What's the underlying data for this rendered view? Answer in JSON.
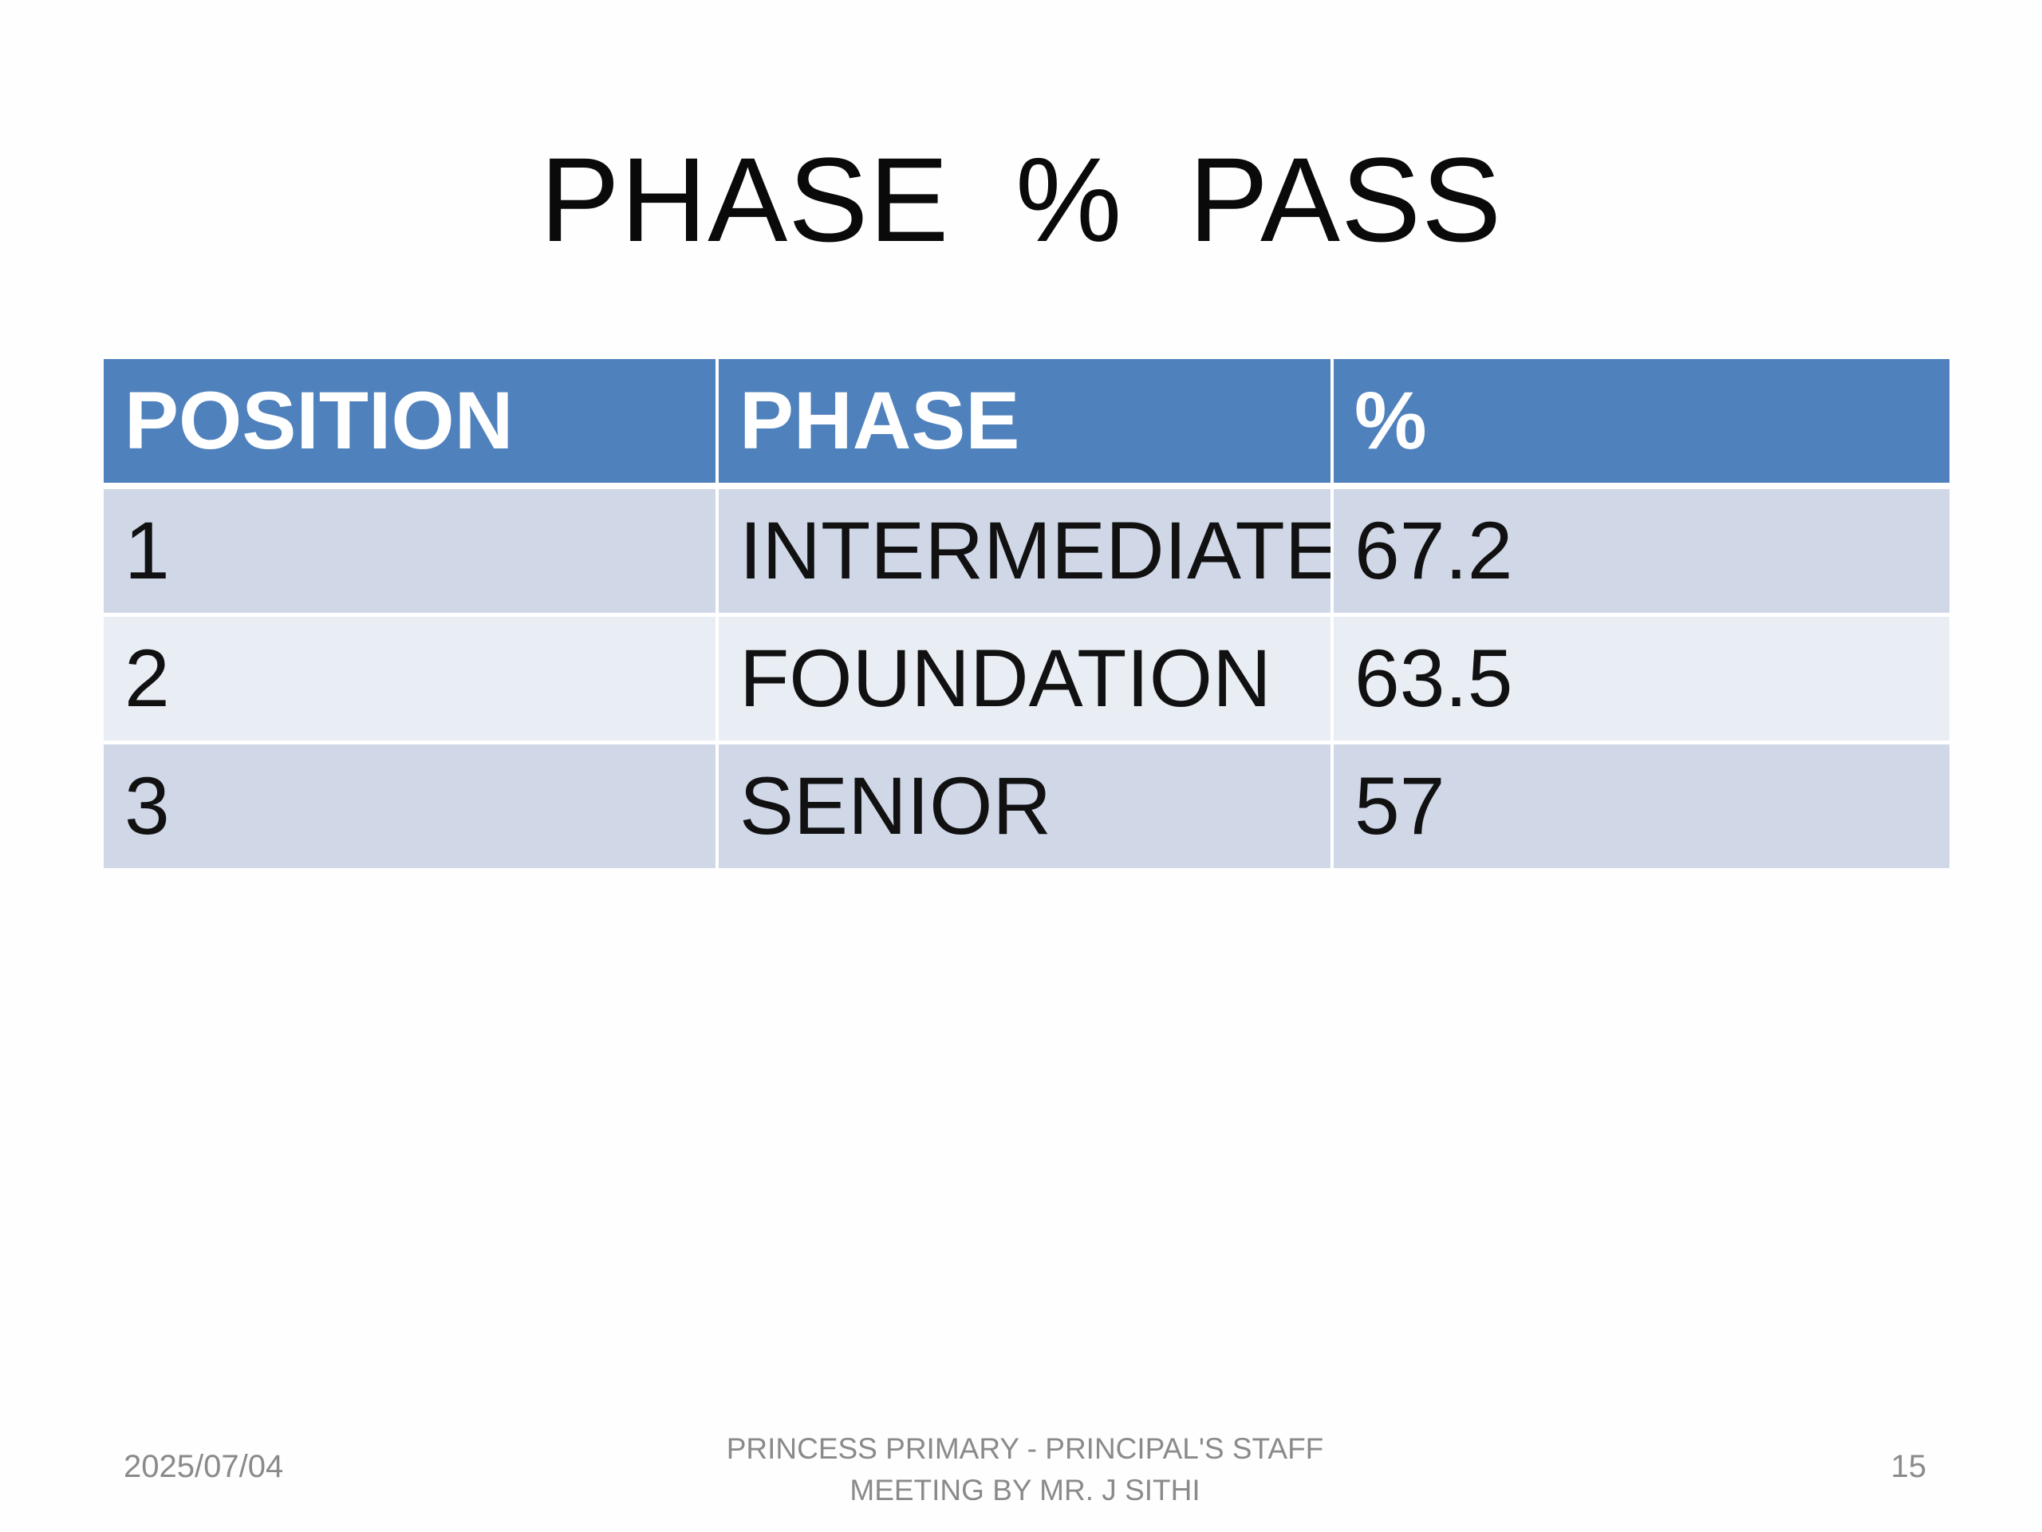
{
  "slide": {
    "title": "PHASE % PASS",
    "table": {
      "headers": [
        "POSITION",
        "PHASE",
        "%"
      ],
      "rows": [
        [
          "1",
          "INTERMEDIATE",
          "67.2"
        ],
        [
          "2",
          "FOUNDATION",
          "63.5"
        ],
        [
          "3",
          "SENIOR",
          "57"
        ]
      ]
    },
    "footer": {
      "date": "2025/07/04",
      "center_line1": "PRINCESS PRIMARY - PRINCIPAL'S STAFF",
      "center_line2": "MEETING BY MR. J SITHI",
      "page_number": "15"
    }
  },
  "colors": {
    "header_fill": "#4f81bd",
    "row_odd_fill": "#d0d8e8",
    "row_even_fill": "#e9edf4",
    "footer_text": "#8a8a8a"
  }
}
